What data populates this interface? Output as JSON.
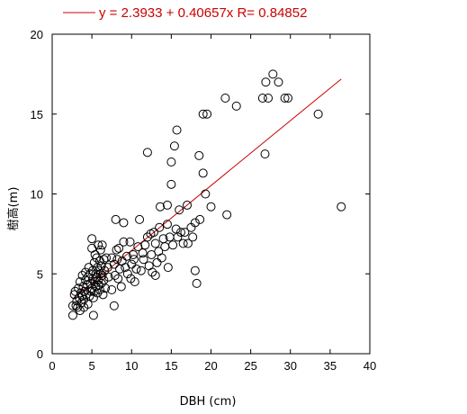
{
  "chart_data": {
    "type": "scatter",
    "title": "",
    "xlabel": "DBH (cm)",
    "ylabel": "樹高(m)",
    "xlim": [
      0,
      40
    ],
    "ylim": [
      0,
      20
    ],
    "xticks": [
      0,
      5,
      10,
      15,
      20,
      25,
      30,
      35,
      40
    ],
    "yticks": [
      0,
      5,
      10,
      15,
      20
    ],
    "grid": false,
    "fit": {
      "label": "y = 2.3933 + 0.40657x   R= 0.84852",
      "intercept": 2.3933,
      "slope": 0.40657,
      "r": 0.84852,
      "x_range": [
        2.6,
        36.4
      ],
      "color": "#cc0000"
    },
    "marker_color": "#000000",
    "points": [
      [
        2.6,
        2.4
      ],
      [
        2.6,
        3.0
      ],
      [
        2.8,
        3.7
      ],
      [
        2.9,
        3.9
      ],
      [
        3.0,
        3.0
      ],
      [
        3.1,
        3.3
      ],
      [
        3.2,
        2.9
      ],
      [
        3.3,
        4.1
      ],
      [
        3.4,
        3.5
      ],
      [
        3.5,
        2.7
      ],
      [
        3.5,
        4.5
      ],
      [
        3.6,
        3.8
      ],
      [
        3.7,
        3.2
      ],
      [
        3.8,
        4.9
      ],
      [
        3.8,
        3.6
      ],
      [
        3.9,
        4.2
      ],
      [
        4.0,
        2.9
      ],
      [
        4.0,
        3.4
      ],
      [
        4.1,
        3.9
      ],
      [
        4.2,
        4.6
      ],
      [
        4.2,
        5.1
      ],
      [
        4.3,
        3.7
      ],
      [
        4.4,
        4.3
      ],
      [
        4.5,
        3.1
      ],
      [
        4.5,
        4.8
      ],
      [
        4.6,
        5.4
      ],
      [
        4.7,
        3.6
      ],
      [
        4.8,
        4.4
      ],
      [
        4.8,
        5.0
      ],
      [
        4.9,
        3.9
      ],
      [
        5.0,
        4.1
      ],
      [
        5.0,
        6.6
      ],
      [
        5.0,
        7.2
      ],
      [
        5.1,
        5.2
      ],
      [
        5.1,
        4.7
      ],
      [
        5.2,
        3.5
      ],
      [
        5.2,
        2.4
      ],
      [
        5.3,
        5.7
      ],
      [
        5.3,
        3.9
      ],
      [
        5.4,
        4.5
      ],
      [
        5.4,
        6.2
      ],
      [
        5.5,
        5.0
      ],
      [
        5.5,
        4.2
      ],
      [
        5.6,
        6.0
      ],
      [
        5.6,
        4.8
      ],
      [
        5.7,
        5.4
      ],
      [
        5.7,
        3.8
      ],
      [
        5.8,
        4.6
      ],
      [
        5.8,
        6.8
      ],
      [
        5.9,
        5.2
      ],
      [
        5.9,
        4.3
      ],
      [
        6.0,
        5.8
      ],
      [
        6.0,
        4.0
      ],
      [
        6.1,
        6.5
      ],
      [
        6.1,
        5.0
      ],
      [
        6.2,
        4.4
      ],
      [
        6.2,
        5.5
      ],
      [
        6.3,
        6.8
      ],
      [
        6.3,
        4.9
      ],
      [
        6.4,
        3.7
      ],
      [
        6.5,
        5.9
      ],
      [
        6.5,
        4.6
      ],
      [
        6.6,
        5.2
      ],
      [
        6.7,
        4.1
      ],
      [
        6.8,
        6.0
      ],
      [
        7.0,
        5.4
      ],
      [
        7.1,
        4.8
      ],
      [
        7.5,
        4.0
      ],
      [
        7.5,
        6.0
      ],
      [
        7.8,
        3.0
      ],
      [
        7.8,
        5.6
      ],
      [
        7.9,
        4.9
      ],
      [
        8.0,
        8.4
      ],
      [
        8.1,
        6.5
      ],
      [
        8.2,
        5.9
      ],
      [
        8.3,
        4.7
      ],
      [
        8.4,
        6.6
      ],
      [
        8.5,
        5.3
      ],
      [
        8.7,
        4.2
      ],
      [
        8.8,
        5.8
      ],
      [
        9.0,
        7.0
      ],
      [
        9.0,
        8.2
      ],
      [
        9.2,
        5.4
      ],
      [
        9.4,
        6.1
      ],
      [
        9.5,
        5.0
      ],
      [
        9.8,
        7.0
      ],
      [
        9.9,
        4.7
      ],
      [
        10.0,
        5.6
      ],
      [
        10.2,
        6.2
      ],
      [
        10.3,
        5.9
      ],
      [
        10.4,
        4.5
      ],
      [
        10.6,
        5.3
      ],
      [
        10.8,
        6.7
      ],
      [
        11.0,
        8.4
      ],
      [
        11.2,
        5.2
      ],
      [
        11.4,
        6.3
      ],
      [
        11.5,
        5.9
      ],
      [
        11.7,
        6.8
      ],
      [
        12.0,
        12.6
      ],
      [
        12.0,
        7.3
      ],
      [
        12.2,
        5.5
      ],
      [
        12.4,
        7.5
      ],
      [
        12.5,
        6.2
      ],
      [
        12.6,
        5.1
      ],
      [
        12.8,
        7.6
      ],
      [
        13.0,
        4.9
      ],
      [
        13.0,
        6.9
      ],
      [
        13.2,
        5.7
      ],
      [
        13.4,
        6.4
      ],
      [
        13.5,
        7.9
      ],
      [
        13.6,
        9.2
      ],
      [
        13.8,
        6.0
      ],
      [
        14.0,
        7.2
      ],
      [
        14.2,
        6.7
      ],
      [
        14.5,
        8.1
      ],
      [
        14.5,
        9.3
      ],
      [
        14.6,
        5.4
      ],
      [
        14.8,
        7.3
      ],
      [
        15.0,
        10.6
      ],
      [
        15.0,
        12.0
      ],
      [
        15.2,
        6.8
      ],
      [
        15.4,
        13.0
      ],
      [
        15.6,
        7.8
      ],
      [
        15.7,
        14.0
      ],
      [
        15.8,
        7.3
      ],
      [
        16.0,
        9.0
      ],
      [
        16.2,
        7.6
      ],
      [
        16.5,
        6.9
      ],
      [
        16.7,
        7.6
      ],
      [
        17.0,
        9.3
      ],
      [
        17.1,
        6.9
      ],
      [
        17.5,
        7.9
      ],
      [
        17.7,
        7.3
      ],
      [
        18.0,
        8.2
      ],
      [
        18.0,
        5.2
      ],
      [
        18.2,
        4.4
      ],
      [
        18.5,
        12.4
      ],
      [
        18.6,
        8.4
      ],
      [
        19.0,
        15.0
      ],
      [
        19.0,
        11.3
      ],
      [
        19.3,
        10.0
      ],
      [
        19.5,
        15.0
      ],
      [
        20.0,
        9.2
      ],
      [
        21.8,
        16.0
      ],
      [
        22.0,
        8.7
      ],
      [
        23.2,
        15.5
      ],
      [
        26.5,
        16.0
      ],
      [
        26.8,
        12.5
      ],
      [
        26.9,
        17.0
      ],
      [
        27.2,
        16.0
      ],
      [
        27.8,
        17.5
      ],
      [
        28.5,
        17.0
      ],
      [
        29.3,
        16.0
      ],
      [
        29.7,
        16.0
      ],
      [
        33.5,
        15.0
      ],
      [
        36.4,
        9.2
      ]
    ]
  }
}
